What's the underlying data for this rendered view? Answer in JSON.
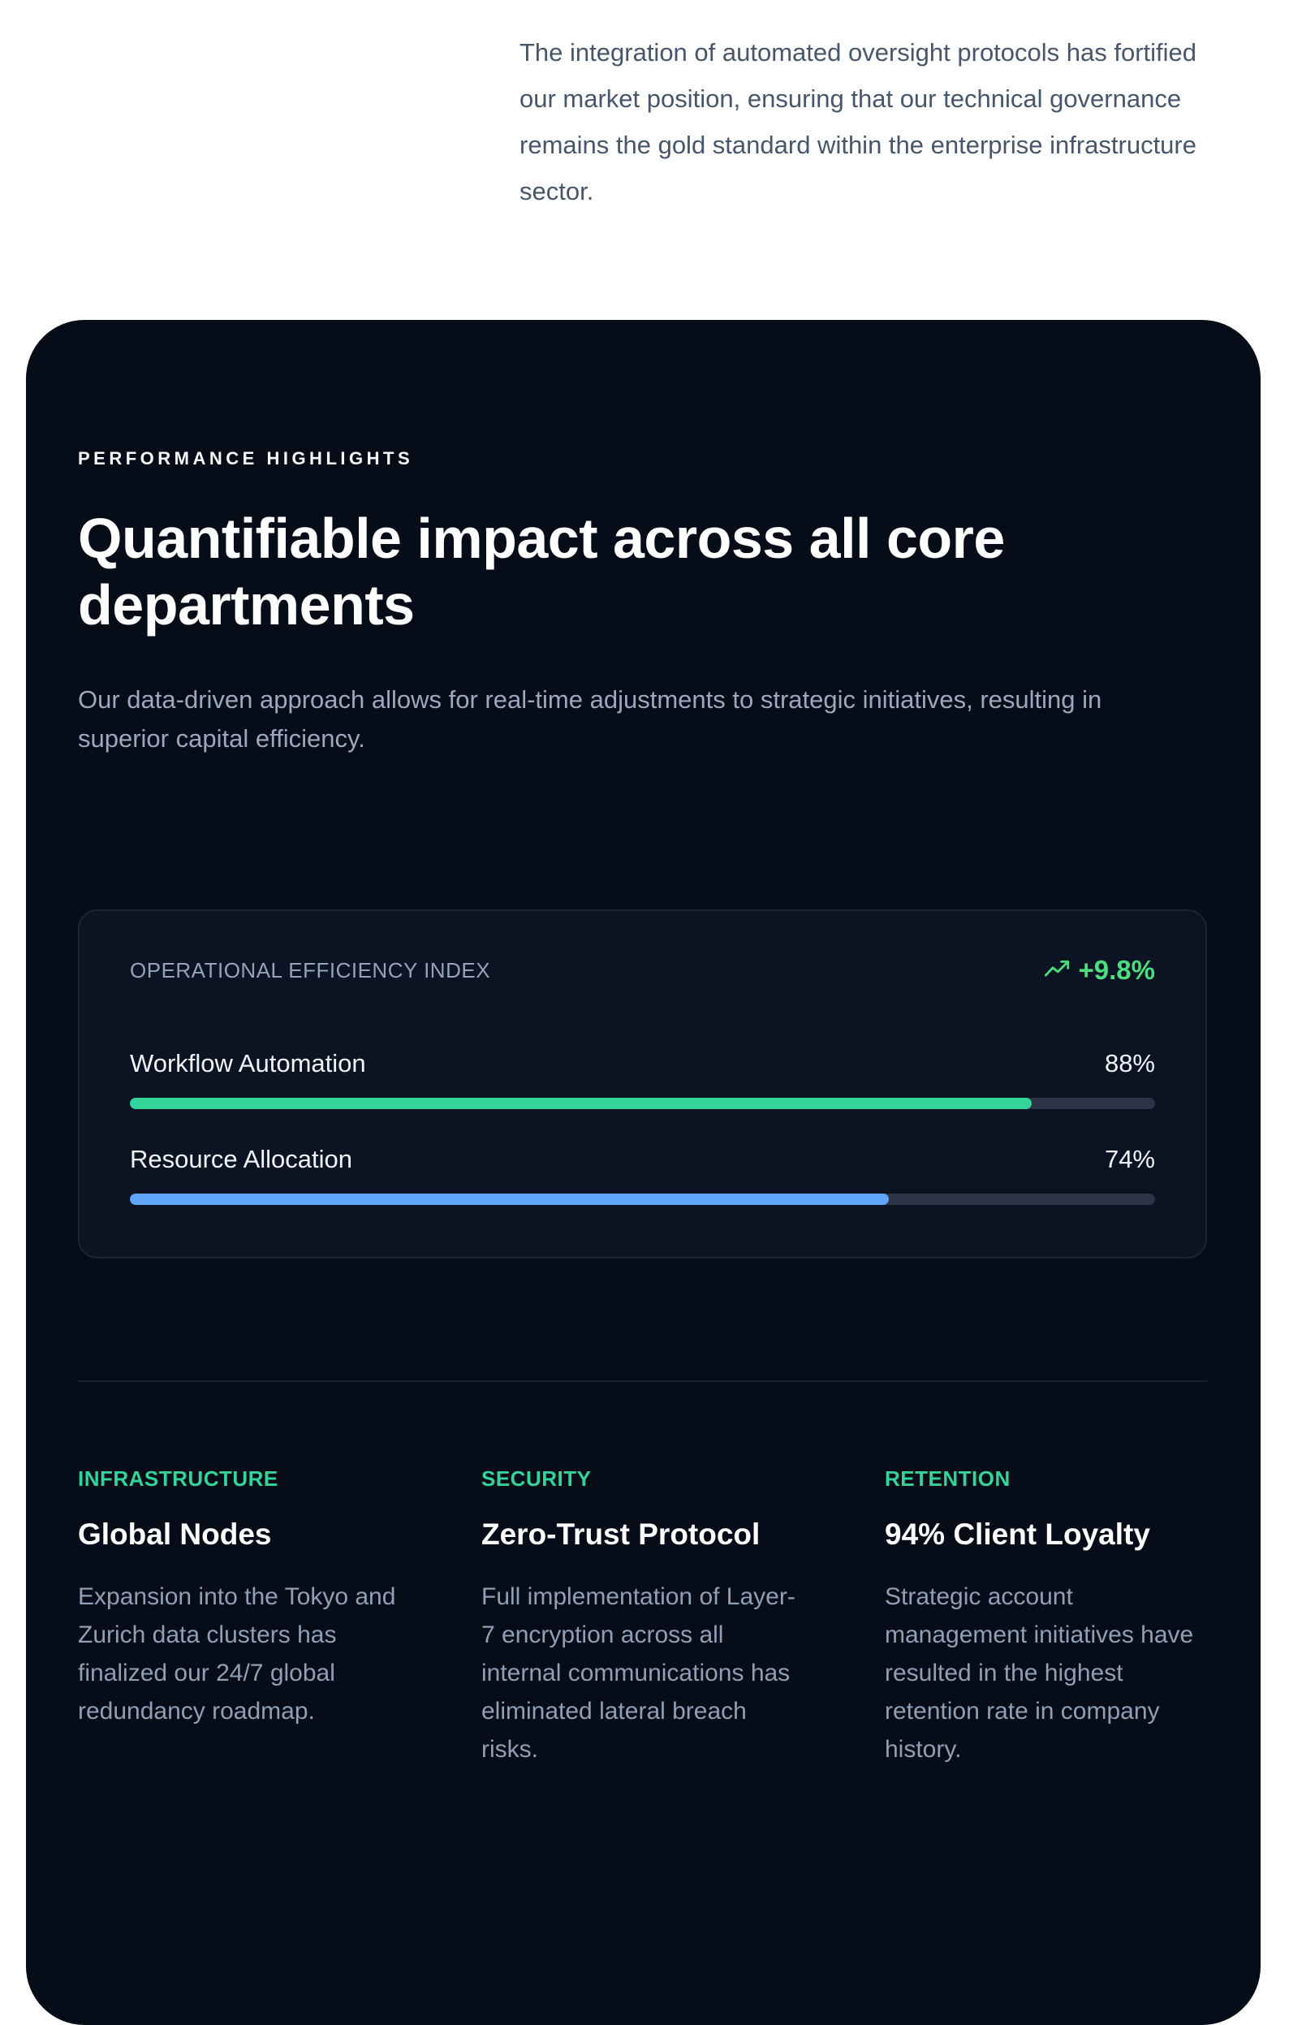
{
  "intro": {
    "text": "The integration of automated oversight protocols has fortified our market position, ensuring that our technical governance remains the gold standard within the enterprise infrastructure sector."
  },
  "section": {
    "eyebrow": "PERFORMANCE HIGHLIGHTS",
    "title": "Quantifiable impact across all core departments",
    "subtitle": "Our data-driven approach allows for real-time adjustments to strategic initiatives, resulting in superior capital efficiency."
  },
  "panel": {
    "label": "OPERATIONAL EFFICIENCY INDEX",
    "delta": "+9.8%",
    "metrics": [
      {
        "name": "Workflow Automation",
        "value": "88%",
        "percent": 88,
        "width_css": "88%",
        "color": "#34d399"
      },
      {
        "name": "Resource Allocation",
        "value": "74%",
        "percent": 74,
        "width_css": "74%",
        "color": "#60a5fa"
      }
    ]
  },
  "features": [
    {
      "tag": "INFRASTRUCTURE",
      "title": "Global Nodes",
      "body": "Expansion into the Tokyo and Zurich data clusters has finalized our 24/7 global redundancy roadmap."
    },
    {
      "tag": "SECURITY",
      "title": "Zero-Trust Protocol",
      "body": "Full implementation of Layer-7 encryption across all internal communications has eliminated lateral breach risks."
    },
    {
      "tag": "RETENTION",
      "title": "94% Client Loyalty",
      "body": "Strategic account management initiatives have resulted in the highest retention rate in company history."
    }
  ],
  "colors": {
    "card_background": "#070c19",
    "panel_background": "#0c1322",
    "delta_green": "#4ade80",
    "tag_green": "#34d399",
    "bar_green": "#34d399",
    "bar_blue": "#60a5fa",
    "intro_text": "#47566b",
    "muted_text": "#94a3b8"
  }
}
